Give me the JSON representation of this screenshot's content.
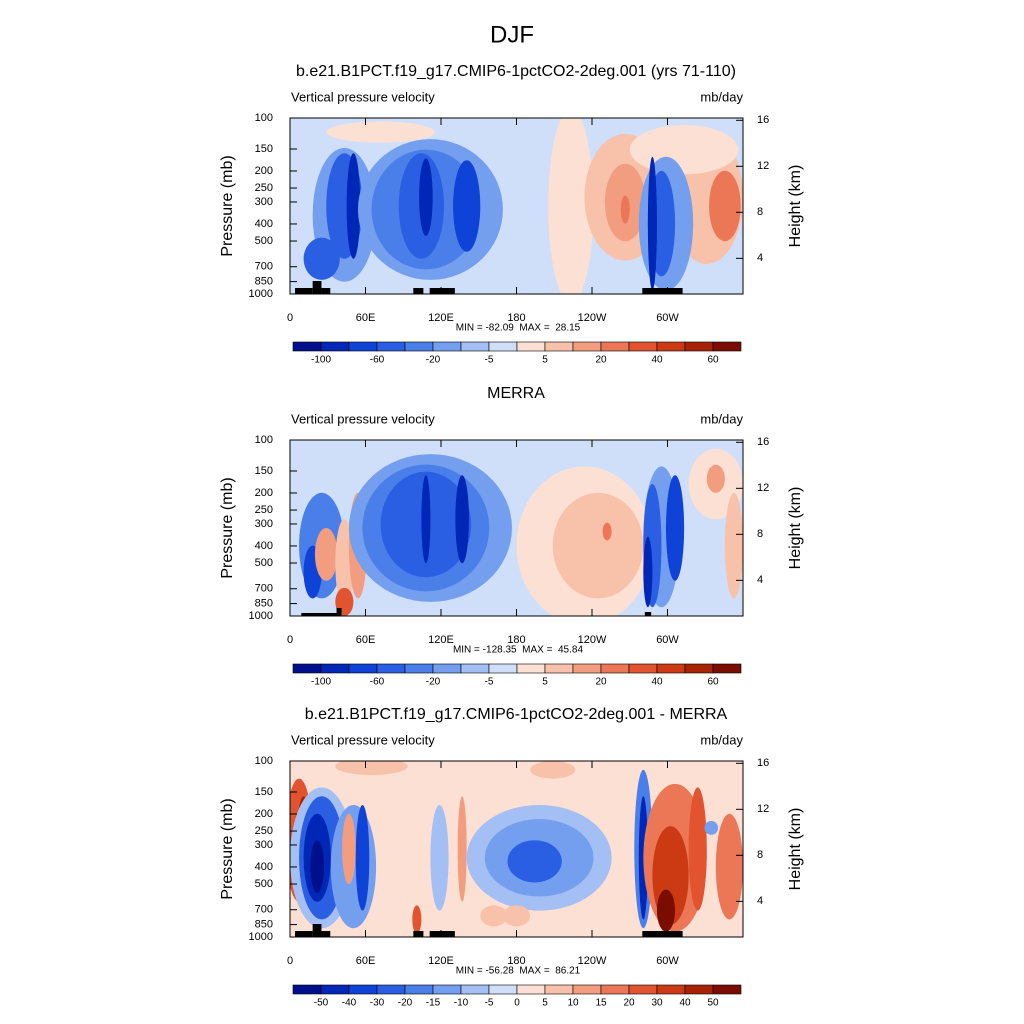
{
  "title": "DJF",
  "chart_data": [
    {
      "type": "contour",
      "title": "b.e21.B1PCT.f19_g17.CMIP6-1pctCO2-2deg.001 (yrs 71-110)",
      "subtitle_left": "Vertical pressure velocity",
      "subtitle_right": "mb/day",
      "ylabel": "Pressure (mb)",
      "y2label": "Height (km)",
      "xlim": [
        0,
        360
      ],
      "xticks": [
        0,
        {
          "value": 60,
          "label": "60E"
        },
        {
          "value": 120,
          "label": "120E"
        },
        180,
        {
          "value": 240,
          "label": "120W"
        },
        {
          "value": 300,
          "label": "60W"
        }
      ],
      "ylim": [
        1000,
        100
      ],
      "yscale": "log",
      "yticks": [
        100,
        150,
        200,
        250,
        300,
        400,
        500,
        700,
        850,
        1000
      ],
      "y2lim": [
        0.9,
        16.2
      ],
      "y2ticks": [
        4,
        8,
        12,
        16
      ],
      "stats": "MIN = -82.09  MAX =  28.15",
      "colorbar": {
        "colors": [
          "#00108c",
          "#0027b5",
          "#0f42d6",
          "#2a5fe3",
          "#4a7fea",
          "#749fef",
          "#a3bff4",
          "#cfdff9",
          "#fde0d4",
          "#f8c1aa",
          "#f29d80",
          "#ec7756",
          "#e2532f",
          "#cc3a14",
          "#a82306",
          "#7a0d00"
        ],
        "labels": [
          -100,
          -60,
          -20,
          -5,
          5,
          20,
          40,
          60
        ]
      }
    },
    {
      "type": "contour",
      "title": "MERRA",
      "subtitle_left": "Vertical pressure velocity",
      "subtitle_right": "mb/day",
      "ylabel": "Pressure (mb)",
      "y2label": "Height (km)",
      "xlim": [
        0,
        360
      ],
      "xticks": [
        0,
        {
          "value": 60,
          "label": "60E"
        },
        {
          "value": 120,
          "label": "120E"
        },
        180,
        {
          "value": 240,
          "label": "120W"
        },
        {
          "value": 300,
          "label": "60W"
        }
      ],
      "ylim": [
        1000,
        100
      ],
      "yscale": "log",
      "yticks": [
        100,
        150,
        200,
        250,
        300,
        400,
        500,
        700,
        850,
        1000
      ],
      "y2lim": [
        0.9,
        16.2
      ],
      "y2ticks": [
        4,
        8,
        12,
        16
      ],
      "stats": "MIN = -128.35  MAX =  45.84",
      "colorbar": {
        "colors": [
          "#00108c",
          "#0027b5",
          "#0f42d6",
          "#2a5fe3",
          "#4a7fea",
          "#749fef",
          "#a3bff4",
          "#cfdff9",
          "#fde0d4",
          "#f8c1aa",
          "#f29d80",
          "#ec7756",
          "#e2532f",
          "#cc3a14",
          "#a82306",
          "#7a0d00"
        ],
        "labels": [
          -100,
          -60,
          -20,
          -5,
          5,
          20,
          40,
          60
        ]
      }
    },
    {
      "type": "contour",
      "title": "b.e21.B1PCT.f19_g17.CMIP6-1pctCO2-2deg.001 - MERRA",
      "subtitle_left": "Vertical pressure velocity",
      "subtitle_right": "mb/day",
      "ylabel": "Pressure (mb)",
      "y2label": "Height (km)",
      "xlim": [
        0,
        360
      ],
      "xticks": [
        0,
        {
          "value": 60,
          "label": "60E"
        },
        {
          "value": 120,
          "label": "120E"
        },
        180,
        {
          "value": 240,
          "label": "120W"
        },
        {
          "value": 300,
          "label": "60W"
        }
      ],
      "ylim": [
        1000,
        100
      ],
      "yscale": "log",
      "yticks": [
        100,
        150,
        200,
        250,
        300,
        400,
        500,
        700,
        850,
        1000
      ],
      "y2lim": [
        0.9,
        16.2
      ],
      "y2ticks": [
        4,
        8,
        12,
        16
      ],
      "stats": "MIN = -56.28  MAX =  86.21",
      "colorbar": {
        "colors": [
          "#00108c",
          "#0027b5",
          "#0f42d6",
          "#2a5fe3",
          "#4a7fea",
          "#749fef",
          "#a3bff4",
          "#cfdff9",
          "#fde0d4",
          "#f8c1aa",
          "#f29d80",
          "#ec7756",
          "#e2532f",
          "#cc3a14",
          "#a82306",
          "#7a0d00"
        ],
        "labels": [
          -50,
          -40,
          -30,
          -20,
          -15,
          -10,
          -5,
          0,
          5,
          10,
          15,
          20,
          30,
          40,
          50
        ]
      }
    }
  ]
}
